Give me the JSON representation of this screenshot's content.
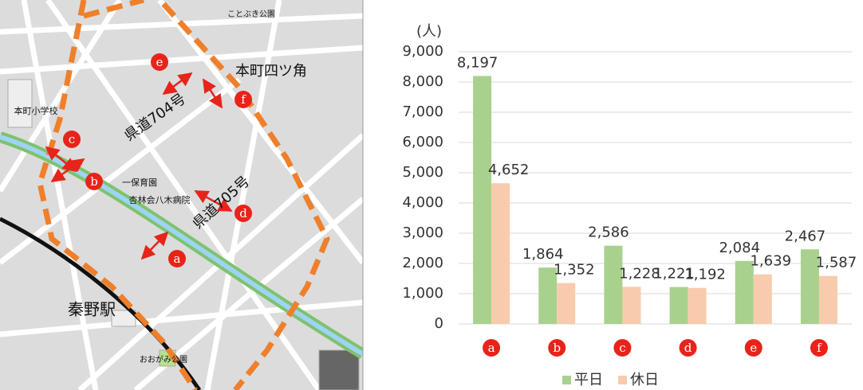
{
  "map": {
    "places": [
      "ことぶき公園",
      "本町四ツ角",
      "県道704号",
      "県道705号",
      "本町小学校",
      "一保育園",
      "杏林会八木病院",
      "秦野駅",
      "おおがみ公園"
    ],
    "points": [
      "e",
      "f",
      "c",
      "b",
      "d",
      "a"
    ]
  },
  "chart_data": {
    "type": "bar",
    "y_label": "(人)",
    "categories": [
      "a",
      "b",
      "c",
      "d",
      "e",
      "f"
    ],
    "series": [
      {
        "name": "平日",
        "color": "#a9d18e",
        "values": [
          8197,
          1864,
          2586,
          1221,
          2084,
          2467
        ],
        "value_labels": [
          "8,197",
          "1,864",
          "2,586",
          "1,221",
          "2,084",
          "2,467"
        ]
      },
      {
        "name": "休日",
        "color": "#f8cbad",
        "values": [
          4652,
          1352,
          1228,
          1192,
          1639,
          1587
        ],
        "value_labels": [
          "4,652",
          "1,352",
          "1,228",
          "1,192",
          "1,639",
          "1,587"
        ]
      }
    ],
    "ylim": [
      0,
      9000
    ],
    "yticks": [
      0,
      {
        "value": 1000,
        "label": "1,000"
      },
      {
        "value": 2000,
        "label": "2,000"
      },
      {
        "value": 3000,
        "label": "3,000"
      },
      {
        "value": 4000,
        "label": "4,000"
      },
      {
        "value": 5000,
        "label": "5,000"
      },
      {
        "value": 6000,
        "label": "6,000"
      },
      {
        "value": 7000,
        "label": "7,000"
      },
      {
        "value": 8000,
        "label": "8,000"
      },
      {
        "value": 9000,
        "label": "9,000"
      }
    ],
    "grid": true,
    "legend": "bottom"
  }
}
